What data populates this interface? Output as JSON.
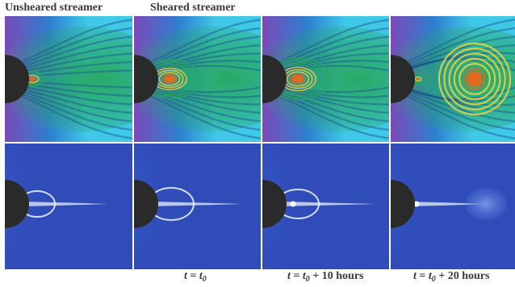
{
  "labels": {
    "unsheared": "Unsheared streamer",
    "sheared": "Sheared streamer"
  },
  "times": [
    {
      "t": "t",
      "eq": " = ",
      "base": "t",
      "sub": "0",
      "suffix": ""
    },
    {
      "t": "t",
      "eq": " = ",
      "base": "t",
      "sub": "0",
      "suffix": " + 10 hours"
    },
    {
      "t": "t",
      "eq": " = ",
      "base": "t",
      "sub": "0",
      "suffix": " + 20 hours"
    }
  ],
  "colors": {
    "purple": "#7a4ab8",
    "blue": "#2e7fd0",
    "cyan": "#3fc8e8",
    "green": "#27a860",
    "yellow": "#e8d040",
    "orange": "#e06a20",
    "sun": "#2a2a2a",
    "corona_bg": "#2f4cb8"
  }
}
